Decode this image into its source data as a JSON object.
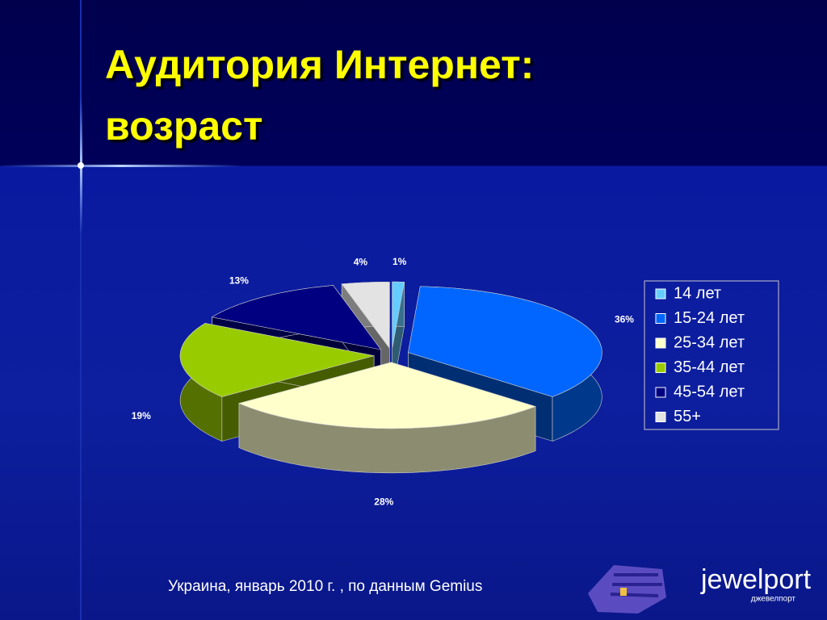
{
  "chart_data": {
    "type": "pie3d",
    "title": "Аудитория Интернет: возраст",
    "categories": [
      "14 лет",
      "15-24 лет",
      "25-34 лет",
      "35-44 лет",
      "45-54 лет",
      "55+"
    ],
    "values": [
      1,
      36,
      28,
      19,
      13,
      4
    ],
    "value_labels": [
      "1%",
      "36%",
      "28%",
      "19%",
      "13%",
      "4%"
    ],
    "colors": [
      "#66ccff",
      "#0066ff",
      "#ffffcc",
      "#99cc00",
      "#000080",
      "#e3e3e3"
    ],
    "legend": "right"
  },
  "footer": "Украина, январь 2010 г. , по данным  Gemius",
  "logo": {
    "name": "jewelport",
    "subtitle": "джевелпорт"
  }
}
